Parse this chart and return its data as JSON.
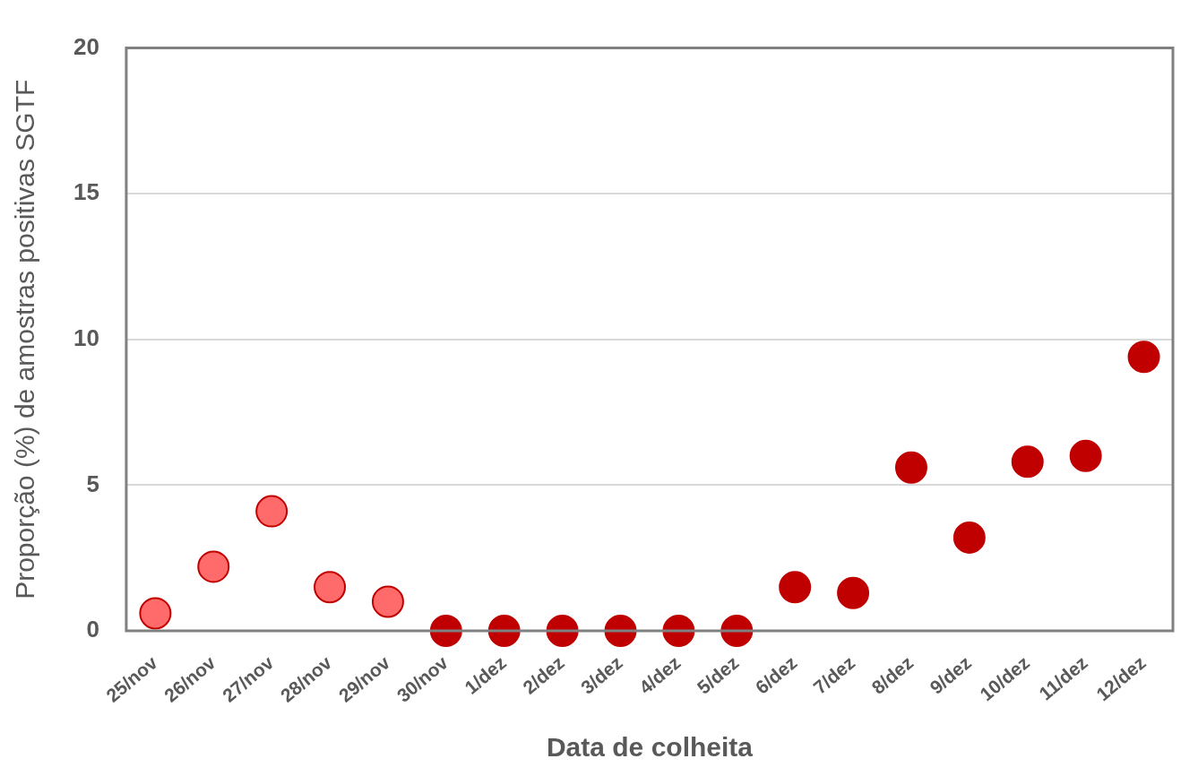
{
  "chart_data": {
    "type": "scatter",
    "xlabel": "Data de colheita",
    "ylabel": "Proporção (%) de amostras positivas SGTF",
    "categories": [
      "25/nov",
      "26/nov",
      "27/nov",
      "28/nov",
      "29/nov",
      "30/nov",
      "1/dez",
      "2/dez",
      "3/dez",
      "4/dez",
      "5/dez",
      "6/dez",
      "7/dez",
      "8/dez",
      "9/dez",
      "10/dez",
      "11/dez",
      "12/dez"
    ],
    "series": [
      {
        "color": "#c00000",
        "colors": [
          "#ff6b6b",
          "#ff6b6b",
          "#ff6b6b",
          "#ff6b6b",
          "#ff6b6b",
          "#c00000",
          "#c00000",
          "#c00000",
          "#c00000",
          "#c00000",
          "#c00000",
          "#c00000",
          "#c00000",
          "#c00000",
          "#c00000",
          "#c00000",
          "#c00000",
          "#c00000"
        ],
        "values": [
          0.6,
          2.2,
          4.1,
          1.5,
          1.0,
          0,
          0,
          0,
          0,
          0,
          0,
          1.5,
          1.3,
          5.6,
          3.2,
          5.8,
          6.0,
          9.4
        ]
      }
    ],
    "ylim": [
      0,
      20
    ],
    "yticks": [
      0,
      5,
      10,
      15,
      20
    ],
    "grid": "y",
    "legend": false,
    "marker": "circle"
  }
}
